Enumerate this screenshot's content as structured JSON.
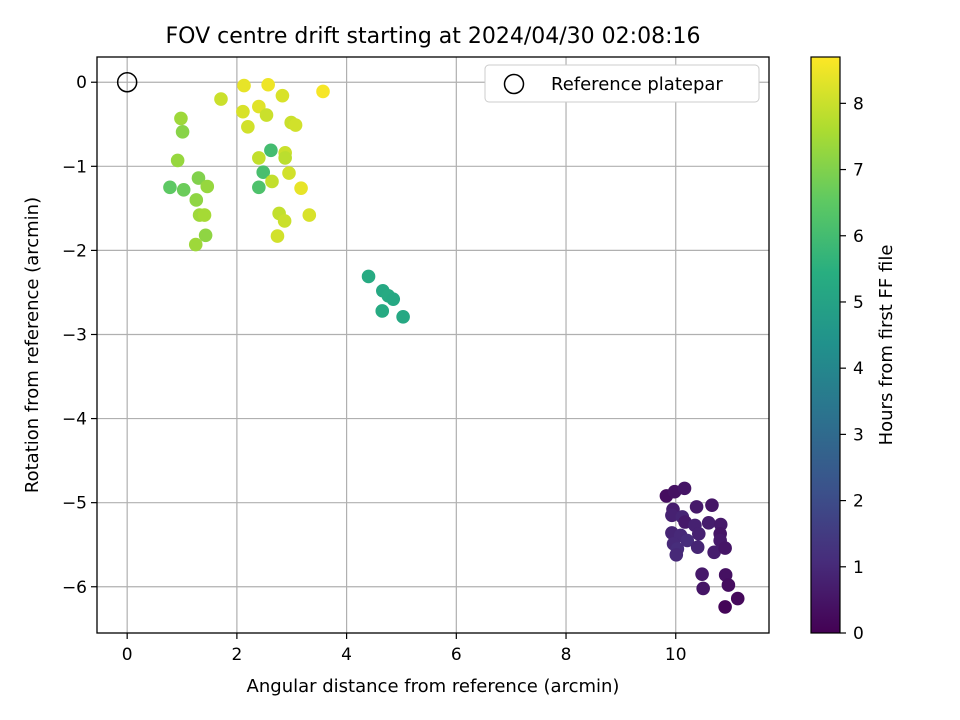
{
  "chart_data": {
    "type": "scatter",
    "title": "FOV centre drift starting at 2024/04/30 02:08:16",
    "xlabel": "Angular distance from reference (arcmin)",
    "ylabel": "Rotation from reference (arcmin)",
    "xlim": [
      -0.55,
      11.7
    ],
    "ylim": [
      -6.55,
      0.3
    ],
    "xticks": [
      0,
      2,
      4,
      6,
      8,
      10
    ],
    "yticks": [
      0,
      -1,
      -2,
      -3,
      -4,
      -5,
      -6
    ],
    "grid": true,
    "legend": {
      "position": "top-right",
      "entries": [
        {
          "label": "Reference platepar",
          "marker": "open-circle"
        }
      ]
    },
    "reference_point": {
      "x": 0,
      "y": 0
    },
    "colorbar": {
      "label": "Hours from first FF file",
      "colormap": "viridis",
      "range": [
        0,
        8.7
      ],
      "ticks": [
        0,
        1,
        2,
        3,
        4,
        5,
        6,
        7,
        8
      ]
    },
    "points": [
      {
        "x": 9.83,
        "y": -4.92,
        "c": 0.3
      },
      {
        "x": 9.98,
        "y": -4.87,
        "c": 0.4
      },
      {
        "x": 10.16,
        "y": -4.83,
        "c": 0.5
      },
      {
        "x": 10.38,
        "y": -5.05,
        "c": 0.6
      },
      {
        "x": 10.66,
        "y": -5.03,
        "c": 0.5
      },
      {
        "x": 9.95,
        "y": -5.08,
        "c": 0.7
      },
      {
        "x": 9.93,
        "y": -5.15,
        "c": 0.8
      },
      {
        "x": 10.12,
        "y": -5.17,
        "c": 0.9
      },
      {
        "x": 10.17,
        "y": -5.23,
        "c": 0.6
      },
      {
        "x": 10.35,
        "y": -5.27,
        "c": 0.8
      },
      {
        "x": 10.6,
        "y": -5.24,
        "c": 0.7
      },
      {
        "x": 10.82,
        "y": -5.26,
        "c": 0.6
      },
      {
        "x": 9.93,
        "y": -5.36,
        "c": 0.9
      },
      {
        "x": 10.09,
        "y": -5.39,
        "c": 1.0
      },
      {
        "x": 10.21,
        "y": -5.45,
        "c": 1.1
      },
      {
        "x": 10.42,
        "y": -5.37,
        "c": 0.8
      },
      {
        "x": 10.81,
        "y": -5.37,
        "c": 0.5
      },
      {
        "x": 10.81,
        "y": -5.45,
        "c": 0.6
      },
      {
        "x": 9.96,
        "y": -5.49,
        "c": 1.0
      },
      {
        "x": 10.03,
        "y": -5.55,
        "c": 1.1
      },
      {
        "x": 10.4,
        "y": -5.53,
        "c": 0.9
      },
      {
        "x": 10.7,
        "y": -5.59,
        "c": 0.7
      },
      {
        "x": 10.9,
        "y": -5.54,
        "c": 0.5
      },
      {
        "x": 10.01,
        "y": -5.62,
        "c": 1.0
      },
      {
        "x": 10.48,
        "y": -5.85,
        "c": 0.6
      },
      {
        "x": 10.91,
        "y": -5.86,
        "c": 0.4
      },
      {
        "x": 10.96,
        "y": -5.98,
        "c": 0.3
      },
      {
        "x": 10.5,
        "y": -6.02,
        "c": 0.5
      },
      {
        "x": 11.13,
        "y": -6.14,
        "c": 0.2
      },
      {
        "x": 10.9,
        "y": -6.24,
        "c": 0.1
      },
      {
        "x": 4.4,
        "y": -2.31,
        "c": 5.3
      },
      {
        "x": 4.66,
        "y": -2.48,
        "c": 5.2
      },
      {
        "x": 4.76,
        "y": -2.54,
        "c": 5.3
      },
      {
        "x": 4.85,
        "y": -2.58,
        "c": 5.2
      },
      {
        "x": 4.65,
        "y": -2.72,
        "c": 5.3
      },
      {
        "x": 5.03,
        "y": -2.79,
        "c": 5.2
      },
      {
        "x": 2.62,
        "y": -0.81,
        "c": 6.0
      },
      {
        "x": 2.48,
        "y": -1.07,
        "c": 6.1
      },
      {
        "x": 2.4,
        "y": -1.25,
        "c": 6.2
      },
      {
        "x": 0.78,
        "y": -1.25,
        "c": 6.5
      },
      {
        "x": 1.03,
        "y": -1.28,
        "c": 6.7
      },
      {
        "x": 1.3,
        "y": -1.14,
        "c": 7.0
      },
      {
        "x": 0.92,
        "y": -0.93,
        "c": 7.3
      },
      {
        "x": 0.98,
        "y": -0.43,
        "c": 7.4
      },
      {
        "x": 1.01,
        "y": -0.59,
        "c": 7.1
      },
      {
        "x": 1.26,
        "y": -1.4,
        "c": 7.2
      },
      {
        "x": 1.32,
        "y": -1.58,
        "c": 7.4
      },
      {
        "x": 1.41,
        "y": -1.58,
        "c": 7.5
      },
      {
        "x": 1.46,
        "y": -1.24,
        "c": 7.3
      },
      {
        "x": 1.43,
        "y": -1.82,
        "c": 7.2
      },
      {
        "x": 1.25,
        "y": -1.93,
        "c": 7.4
      },
      {
        "x": 1.71,
        "y": -0.2,
        "c": 8.0
      },
      {
        "x": 2.11,
        "y": -0.35,
        "c": 8.2
      },
      {
        "x": 2.13,
        "y": -0.04,
        "c": 8.4
      },
      {
        "x": 2.2,
        "y": -0.53,
        "c": 8.1
      },
      {
        "x": 2.4,
        "y": -0.29,
        "c": 8.3
      },
      {
        "x": 2.54,
        "y": -0.39,
        "c": 8.0
      },
      {
        "x": 2.57,
        "y": -0.03,
        "c": 8.5
      },
      {
        "x": 2.83,
        "y": -0.16,
        "c": 8.2
      },
      {
        "x": 2.99,
        "y": -0.48,
        "c": 8.0
      },
      {
        "x": 3.07,
        "y": -0.51,
        "c": 8.1
      },
      {
        "x": 3.57,
        "y": -0.11,
        "c": 8.6
      },
      {
        "x": 2.4,
        "y": -0.9,
        "c": 7.9
      },
      {
        "x": 2.88,
        "y": -0.84,
        "c": 8.0
      },
      {
        "x": 2.88,
        "y": -0.9,
        "c": 7.8
      },
      {
        "x": 2.95,
        "y": -1.08,
        "c": 8.1
      },
      {
        "x": 2.64,
        "y": -1.18,
        "c": 7.9
      },
      {
        "x": 3.17,
        "y": -1.26,
        "c": 8.4
      },
      {
        "x": 2.77,
        "y": -1.56,
        "c": 7.9
      },
      {
        "x": 2.87,
        "y": -1.65,
        "c": 8.0
      },
      {
        "x": 3.32,
        "y": -1.58,
        "c": 8.2
      },
      {
        "x": 2.74,
        "y": -1.83,
        "c": 8.1
      }
    ]
  }
}
